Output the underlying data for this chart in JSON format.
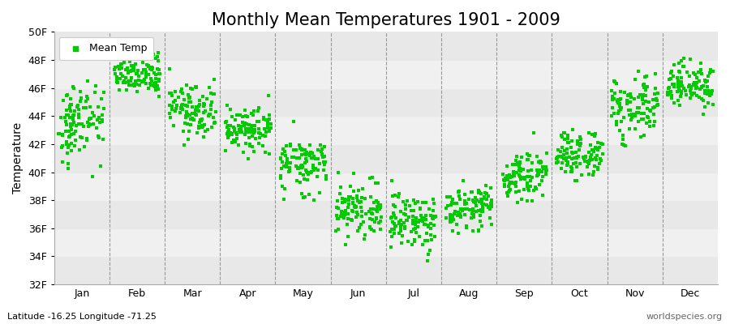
{
  "title": "Monthly Mean Temperatures 1901 - 2009",
  "ylabel": "Temperature",
  "xlabel": "",
  "bottom_left_label": "Latitude -16.25 Longitude -71.25",
  "bottom_right_label": "worldspecies.org",
  "legend_label": "Mean Temp",
  "marker_color": "#00cc00",
  "marker": "s",
  "marker_size": 2.5,
  "ylim": [
    32,
    50
  ],
  "ytick_vals": [
    32,
    34,
    36,
    38,
    40,
    42,
    44,
    46,
    48,
    50
  ],
  "ytick_labels": [
    "32F",
    "34F",
    "36F",
    "38F",
    "40F",
    "42F",
    "44F",
    "46F",
    "48F",
    "50F"
  ],
  "months": [
    "Jan",
    "Feb",
    "Mar",
    "Apr",
    "May",
    "Jun",
    "Jul",
    "Aug",
    "Sep",
    "Oct",
    "Nov",
    "Dec"
  ],
  "n_years": 109,
  "base_means": [
    43.5,
    47.0,
    44.5,
    43.0,
    40.5,
    37.3,
    36.5,
    37.5,
    39.8,
    41.2,
    44.5,
    46.3
  ],
  "base_stds": [
    1.4,
    0.7,
    0.9,
    0.8,
    0.9,
    0.9,
    1.0,
    0.8,
    0.8,
    0.8,
    1.0,
    0.7
  ],
  "background_bands": [
    {
      "ymin": 32,
      "ymax": 34,
      "color": "#e8e8e8"
    },
    {
      "ymin": 34,
      "ymax": 36,
      "color": "#f0f0f0"
    },
    {
      "ymin": 36,
      "ymax": 38,
      "color": "#e8e8e8"
    },
    {
      "ymin": 38,
      "ymax": 40,
      "color": "#f0f0f0"
    },
    {
      "ymin": 40,
      "ymax": 42,
      "color": "#e8e8e8"
    },
    {
      "ymin": 42,
      "ymax": 44,
      "color": "#f0f0f0"
    },
    {
      "ymin": 44,
      "ymax": 46,
      "color": "#e8e8e8"
    },
    {
      "ymin": 46,
      "ymax": 48,
      "color": "#f0f0f0"
    },
    {
      "ymin": 48,
      "ymax": 50,
      "color": "#e8e8e8"
    }
  ],
  "background_color": "#ffffff",
  "title_fontsize": 15,
  "axis_label_fontsize": 10,
  "tick_fontsize": 9,
  "legend_fontsize": 9
}
